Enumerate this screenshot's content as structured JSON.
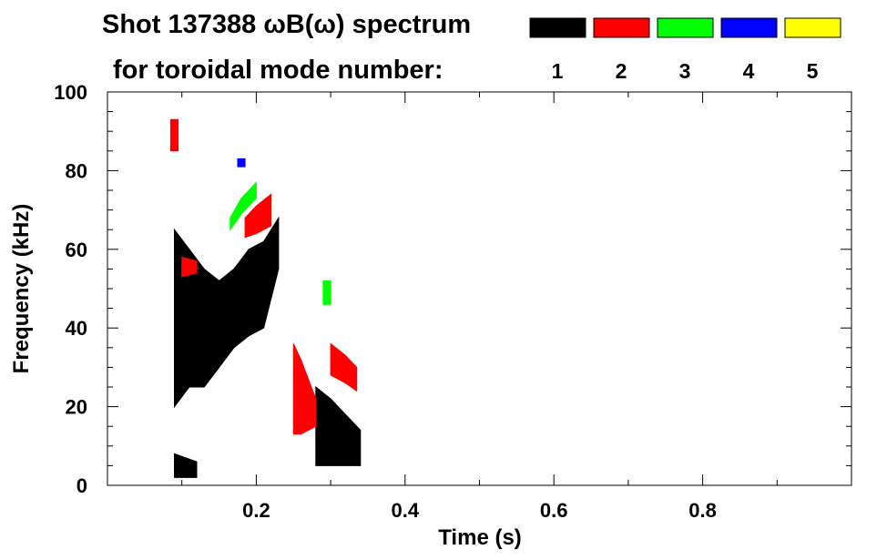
{
  "chart_data": {
    "type": "heatmap",
    "title": "Shot 137388 ωB(ω) spectrum",
    "legend_title": "for toroidal mode number:",
    "xlabel": "Time (s)",
    "ylabel": "Frequency (kHz)",
    "xlim": [
      0.0,
      1.0
    ],
    "ylim": [
      0,
      100
    ],
    "x_ticks": [
      0.2,
      0.4,
      0.6,
      0.8
    ],
    "x_tick_labels": [
      "0.2",
      "0.4",
      "0.6",
      "0.8"
    ],
    "y_ticks": [
      0,
      20,
      40,
      60,
      80,
      100
    ],
    "y_tick_labels": [
      "0",
      "20",
      "40",
      "60",
      "80",
      "100"
    ],
    "legend_position": "top-right",
    "grid": false,
    "series": [
      {
        "name": "1",
        "color": "#000000"
      },
      {
        "name": "2",
        "color": "#ff0000"
      },
      {
        "name": "3",
        "color": "#00ff00"
      },
      {
        "name": "4",
        "color": "#0000ff"
      },
      {
        "name": "5",
        "color": "#ffff00"
      }
    ],
    "features": [
      {
        "mode": "1",
        "kind": "band",
        "t": [
          0.09,
          0.11,
          0.13,
          0.15,
          0.17,
          0.19,
          0.21,
          0.23
        ],
        "f_low": [
          20,
          25,
          25,
          30,
          35,
          38,
          40,
          55
        ],
        "f_high": [
          65,
          60,
          55,
          52,
          55,
          60,
          62,
          68
        ]
      },
      {
        "mode": "1",
        "kind": "band",
        "t": [
          0.28,
          0.3,
          0.32,
          0.34
        ],
        "f_low": [
          5,
          5,
          5,
          5
        ],
        "f_high": [
          25,
          22,
          18,
          14
        ]
      },
      {
        "mode": "1",
        "kind": "band",
        "t": [
          0.09,
          0.12
        ],
        "f_low": [
          2,
          2
        ],
        "f_high": [
          8,
          6
        ]
      },
      {
        "mode": "2",
        "kind": "band",
        "t": [
          0.185,
          0.2,
          0.22
        ],
        "f_low": [
          63,
          64,
          66
        ],
        "f_high": [
          68,
          71,
          74
        ]
      },
      {
        "mode": "2",
        "kind": "band",
        "t": [
          0.25,
          0.26,
          0.28
        ],
        "f_low": [
          13,
          13,
          15
        ],
        "f_high": [
          36,
          32,
          22
        ]
      },
      {
        "mode": "2",
        "kind": "band",
        "t": [
          0.3,
          0.32,
          0.335
        ],
        "f_low": [
          28,
          26,
          24
        ],
        "f_high": [
          36,
          33,
          30
        ]
      },
      {
        "mode": "2",
        "kind": "band",
        "t": [
          0.1,
          0.12
        ],
        "f_low": [
          53,
          54
        ],
        "f_high": [
          58,
          57
        ]
      },
      {
        "mode": "2",
        "kind": "band",
        "t": [
          0.085,
          0.095
        ],
        "f_low": [
          85,
          85
        ],
        "f_high": [
          93,
          93
        ]
      },
      {
        "mode": "3",
        "kind": "band",
        "t": [
          0.165,
          0.18,
          0.2
        ],
        "f_low": [
          65,
          69,
          73
        ],
        "f_high": [
          68,
          73,
          77
        ]
      },
      {
        "mode": "3",
        "kind": "band",
        "t": [
          0.29,
          0.3
        ],
        "f_low": [
          46,
          46
        ],
        "f_high": [
          52,
          52
        ]
      },
      {
        "mode": "4",
        "kind": "band",
        "t": [
          0.175,
          0.185
        ],
        "f_low": [
          81,
          81
        ],
        "f_high": [
          83,
          83
        ]
      }
    ]
  }
}
